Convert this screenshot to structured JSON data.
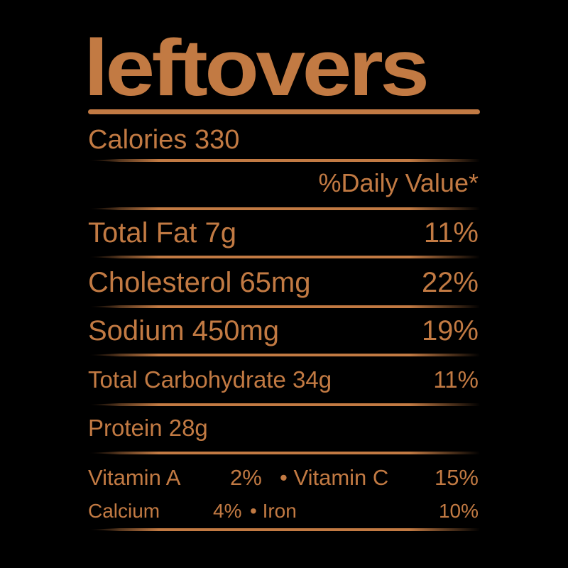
{
  "title": "leftovers",
  "calories": "Calories 330",
  "daily_value_header": "%Daily Value*",
  "rows": [
    {
      "label": "Total Fat 7g",
      "value": "11%"
    },
    {
      "label": "Cholesterol 65mg",
      "value": "22%"
    },
    {
      "label": "Sodium 450mg",
      "value": "19%"
    },
    {
      "label": "Total Carbohydrate 34g",
      "value": "11%"
    },
    {
      "label": "Protein 28g",
      "value": ""
    }
  ],
  "vitamins": {
    "a_label": "Vitamin A",
    "a_value": "2%",
    "c_label": "• Vitamin C",
    "c_value": "15%",
    "calcium_label": "Calcium",
    "calcium_value": "4%",
    "iron_label": "• Iron",
    "iron_value": "10%"
  },
  "colors": {
    "text": "#c27a43",
    "background": "#000000"
  }
}
